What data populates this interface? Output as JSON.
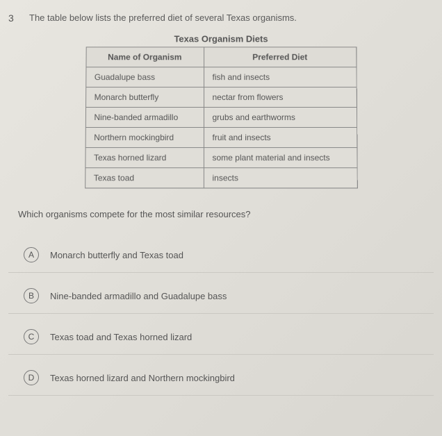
{
  "question": {
    "number": "3",
    "stem": "The table below lists the preferred diet of several Texas organisms."
  },
  "table": {
    "title": "Texas Organism Diets",
    "columns": [
      "Name of Organism",
      "Preferred Diet"
    ],
    "rows": [
      [
        "Guadalupe bass",
        "fish and insects"
      ],
      [
        "Monarch butterfly",
        "nectar from flowers"
      ],
      [
        "Nine-banded armadillo",
        "grubs and earthworms"
      ],
      [
        "Northern mockingbird",
        "fruit and insects"
      ],
      [
        "Texas horned lizard",
        "some plant material and insects"
      ],
      [
        "Texas toad",
        "insects"
      ]
    ]
  },
  "sub_question": "Which organisms compete for the most similar resources?",
  "choices": [
    {
      "letter": "A",
      "text": "Monarch butterfly and Texas toad"
    },
    {
      "letter": "B",
      "text": "Nine-banded armadillo and Guadalupe bass"
    },
    {
      "letter": "C",
      "text": "Texas toad and Texas horned lizard"
    },
    {
      "letter": "D",
      "text": "Texas horned lizard and Northern mockingbird"
    }
  ]
}
